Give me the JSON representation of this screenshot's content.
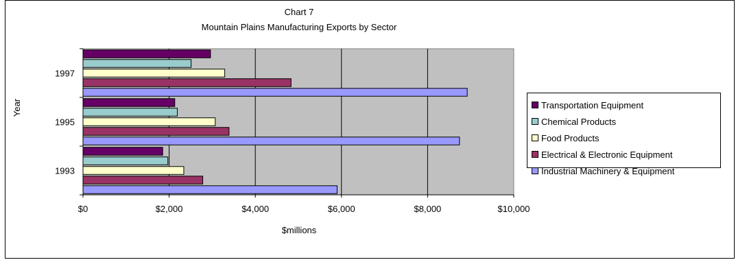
{
  "chart_data": {
    "type": "bar",
    "orientation": "horizontal",
    "title_line1": "Chart 7",
    "title_line2": "Mountain Plains Manufacturing Exports by Sector",
    "xlabel": "$millions",
    "ylabel": "Year",
    "categories": [
      "1993",
      "1995",
      "1997"
    ],
    "xlim": [
      0,
      10000
    ],
    "xticks": [
      "$0",
      "$2,000",
      "$4,000",
      "$6,000",
      "$8,000",
      "$10,000"
    ],
    "tick_values": [
      0,
      2000,
      4000,
      6000,
      8000,
      10000
    ],
    "grid": true,
    "legend_position": "right",
    "series": [
      {
        "name": "Transportation Equipment",
        "color": "#660066",
        "values": [
          1850,
          2130,
          2960
        ]
      },
      {
        "name": "Chemical Products",
        "color": "#99CCCC",
        "values": [
          1970,
          2190,
          2510
        ]
      },
      {
        "name": "Food Products",
        "color": "#FFFFCC",
        "values": [
          2340,
          3070,
          3290
        ]
      },
      {
        "name": "Electrical & Electronic Equipment",
        "color": "#993366",
        "values": [
          2780,
          3390,
          4830
        ]
      },
      {
        "name": "Industrial Machinery & Equipment",
        "color": "#9999FF",
        "values": [
          5900,
          8740,
          8920
        ]
      }
    ],
    "plot_background": "#C0C0C0"
  }
}
